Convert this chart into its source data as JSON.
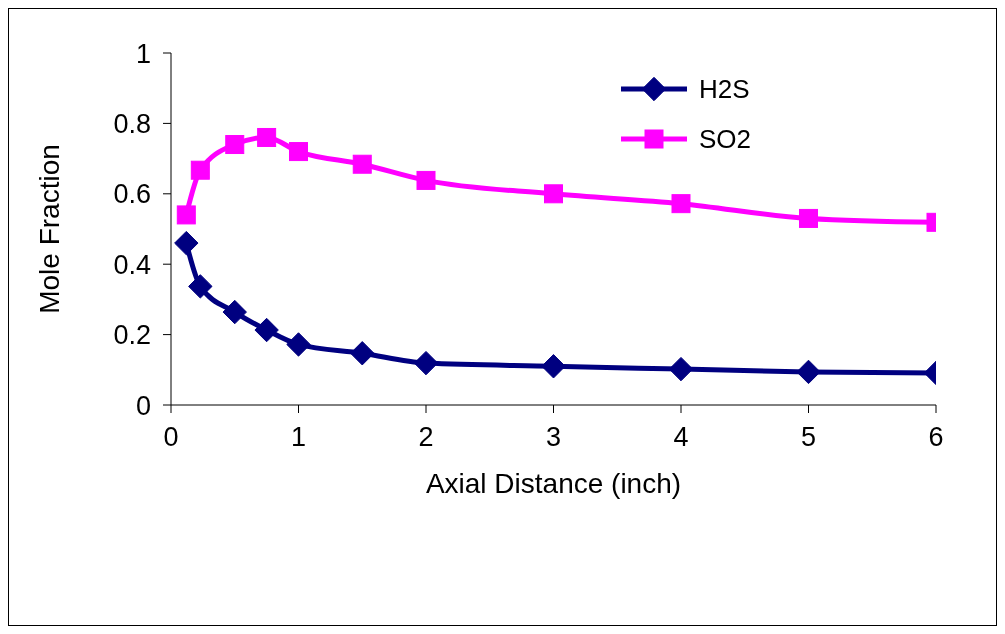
{
  "chart_data": {
    "type": "line",
    "xlabel": "Axial Distance (inch)",
    "ylabel": "Mole Fraction",
    "xlim": [
      0,
      6
    ],
    "xticks": [
      0,
      1,
      2,
      3,
      4,
      5,
      6
    ],
    "ylim": [
      0,
      1
    ],
    "yticks": [
      0,
      0.2,
      0.4,
      0.6,
      0.8,
      1
    ],
    "grid": false,
    "legend": "top right",
    "line_style": "solid",
    "series": [
      {
        "name": "H2S",
        "color": "#000080",
        "marker": "diamond",
        "x": [
          0.12,
          0.23,
          0.5,
          0.75,
          1,
          1.5,
          2,
          3,
          4,
          5,
          6
        ],
        "values": [
          0.46,
          0.337,
          0.264,
          0.213,
          0.172,
          0.147,
          0.119,
          0.11,
          0.102,
          0.094,
          0.091
        ]
      },
      {
        "name": "SO2",
        "color": "#ff00ff",
        "marker": "square",
        "x": [
          0.12,
          0.23,
          0.5,
          0.75,
          1,
          1.5,
          2,
          3,
          4,
          5,
          6
        ],
        "values": [
          0.54,
          0.667,
          0.74,
          0.76,
          0.72,
          0.684,
          0.638,
          0.6,
          0.572,
          0.53,
          0.519
        ]
      }
    ]
  }
}
